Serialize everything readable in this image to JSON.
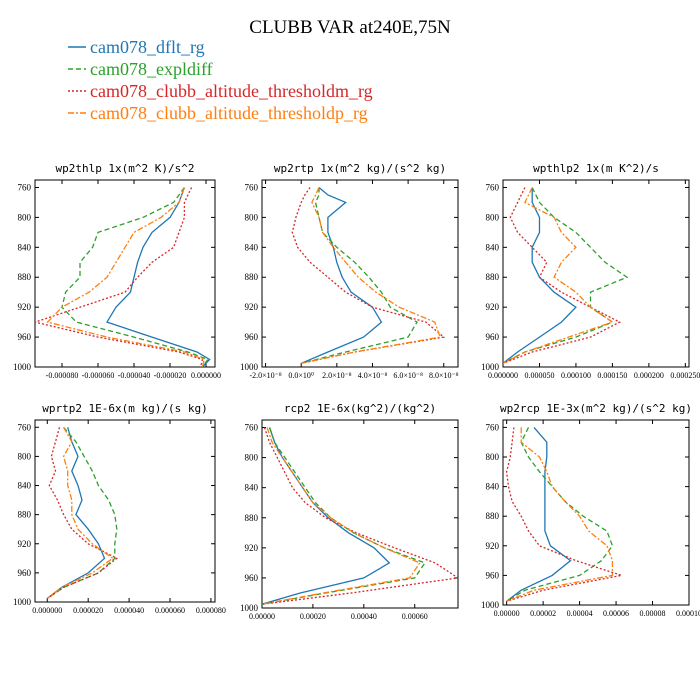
{
  "figure": {
    "title": "CLUBB VAR at240E,75N",
    "legend": [
      {
        "name": "cam078_dflt_rg",
        "color": "#1f77b4",
        "dash": "solid"
      },
      {
        "name": "cam078_expldiff",
        "color": "#2ca02c",
        "dash": "dash"
      },
      {
        "name": "cam078_clubb_altitude_thresholdm_rg",
        "color": "#d62728",
        "dash": "dot"
      },
      {
        "name": "cam078_clubb_altitude_thresholdp_rg",
        "color": "#ff7f0e",
        "dash": "dashdot"
      }
    ]
  },
  "chart_data": [
    {
      "type": "line",
      "title": "wp2thlp  1x(m^2 K)/s^2",
      "xlim": [
        -9.5e-05,
        5e-06
      ],
      "ylim": [
        1000,
        750
      ],
      "x_ticks": [
        -8e-05,
        -6e-05,
        -4e-05,
        -2e-05,
        0.0
      ],
      "x_tick_labels": [
        "-0.000080",
        "-0.000060",
        "-0.000040",
        "-0.000020",
        "0.000000"
      ],
      "y_ticks": [
        760,
        800,
        840,
        880,
        920,
        960,
        1000
      ],
      "y": [
        760,
        780,
        800,
        820,
        840,
        860,
        880,
        900,
        920,
        940,
        960,
        980,
        990,
        1000
      ],
      "series": [
        {
          "name": "cam078_dflt_rg",
          "values": [
            -1.2e-05,
            -1.5e-05,
            -2e-05,
            -3e-05,
            -3.5e-05,
            -3.8e-05,
            -4e-05,
            -4.2e-05,
            -5e-05,
            -5.5e-05,
            -3e-05,
            -5e-06,
            2e-06,
            -2e-06
          ]
        },
        {
          "name": "cam078_expldiff",
          "values": [
            -1.2e-05,
            -1.8e-05,
            -3.5e-05,
            -6e-05,
            -6.3e-05,
            -7e-05,
            -7e-05,
            -7.8e-05,
            -8e-05,
            -7.2e-05,
            -4e-05,
            -1e-05,
            1e-06,
            -2e-06
          ]
        },
        {
          "name": "cam078_clubb_altitude_thresholdm_rg",
          "values": [
            -8e-06,
            -1.2e-05,
            -1.2e-05,
            -1.5e-05,
            -1.8e-05,
            -3e-05,
            -3.8e-05,
            -4.5e-05,
            -7e-05,
            -9.5e-05,
            -6e-05,
            -1.5e-05,
            -2e-06,
            -3e-06
          ]
        },
        {
          "name": "cam078_clubb_altitude_thresholdp_rg",
          "values": [
            -1.2e-05,
            -1.5e-05,
            -2.5e-05,
            -4e-05,
            -4.5e-05,
            -5e-05,
            -5.5e-05,
            -6.5e-05,
            -8e-05,
            -8.8e-05,
            -5.5e-05,
            -1.2e-05,
            -1e-06,
            -2e-06
          ]
        }
      ]
    },
    {
      "type": "line",
      "title": "wp2rtp  1x(m^2 kg)/(s^2 kg)",
      "xlim": [
        -2.2e-08,
        8.8e-08
      ],
      "ylim": [
        1000,
        750
      ],
      "x_ticks": [
        -2e-08,
        0.0,
        2e-08,
        4e-08,
        6e-08,
        8e-08
      ],
      "x_tick_labels": [
        "-2.0×10⁻⁸",
        "0.0×10⁰",
        "2.0×10⁻⁸",
        "4.0×10⁻⁸",
        "6.0×10⁻⁸",
        "8.0×10⁻⁸"
      ],
      "y_ticks": [
        760,
        800,
        840,
        880,
        920,
        960,
        1000
      ],
      "y": [
        760,
        770,
        780,
        800,
        820,
        840,
        860,
        880,
        900,
        920,
        940,
        960,
        980,
        995
      ],
      "series": [
        {
          "name": "cam078_dflt_rg",
          "values": [
            1e-08,
            1.5e-08,
            2.5e-08,
            1.5e-08,
            1.5e-08,
            1.8e-08,
            2e-08,
            2.3e-08,
            2.8e-08,
            4e-08,
            4.5e-08,
            3.5e-08,
            1.5e-08,
            0.0
          ]
        },
        {
          "name": "cam078_expldiff",
          "values": [
            1e-08,
            1e-08,
            8e-09,
            1e-08,
            1.2e-08,
            2e-08,
            3e-08,
            3.8e-08,
            4.5e-08,
            5e-08,
            6.5e-08,
            6e-08,
            2.5e-08,
            0.0
          ]
        },
        {
          "name": "cam078_clubb_altitude_thresholdm_rg",
          "values": [
            5e-09,
            2e-09,
            0.0,
            -3e-09,
            -5e-09,
            -2e-09,
            5e-09,
            1.5e-08,
            2.5e-08,
            4e-08,
            7e-08,
            8e-08,
            3e-08,
            0.0
          ]
        },
        {
          "name": "cam078_clubb_altitude_thresholdp_rg",
          "values": [
            1e-08,
            8e-09,
            6e-09,
            1e-08,
            1.2e-08,
            1.8e-08,
            2.5e-08,
            3.2e-08,
            4.2e-08,
            5.5e-08,
            7.5e-08,
            7.8e-08,
            3e-08,
            0.0
          ]
        }
      ]
    },
    {
      "type": "line",
      "title": "wpthlp2  1x(m K^2)/s",
      "xlim": [
        0.0,
        0.000255
      ],
      "ylim": [
        1000,
        750
      ],
      "x_ticks": [
        0.0,
        5e-05,
        0.0001,
        0.00015,
        0.0002,
        0.00025
      ],
      "x_tick_labels": [
        "0.000000",
        "0.000050",
        "0.000100",
        "0.000150",
        "0.000200",
        "0.000250"
      ],
      "y_ticks": [
        760,
        800,
        840,
        880,
        920,
        960,
        1000
      ],
      "y": [
        760,
        780,
        800,
        820,
        840,
        860,
        880,
        900,
        920,
        940,
        960,
        980,
        995
      ],
      "series": [
        {
          "name": "cam078_dflt_rg",
          "values": [
            4e-05,
            4e-05,
            5e-05,
            5e-05,
            4e-05,
            4e-05,
            5e-05,
            7e-05,
            0.0001,
            8e-05,
            5e-05,
            2e-05,
            0.0
          ],
          "y": [
            760,
            780,
            800,
            820,
            840,
            860,
            880,
            900,
            920,
            940,
            960,
            980,
            995
          ]
        },
        {
          "name": "cam078_expldiff",
          "values": [
            4e-05,
            5e-05,
            7e-05,
            0.0001,
            0.00012,
            0.00014,
            0.00017,
            0.00012,
            0.00012,
            0.00015,
            0.0001,
            3e-05,
            0.0
          ]
        },
        {
          "name": "cam078_clubb_altitude_thresholdm_rg",
          "values": [
            3e-05,
            2e-05,
            1e-05,
            2e-05,
            4e-05,
            6e-05,
            5e-05,
            8e-05,
            0.00012,
            0.00016,
            0.00012,
            4e-05,
            0.0
          ]
        },
        {
          "name": "cam078_clubb_altitude_thresholdp_rg",
          "values": [
            4e-05,
            3e-05,
            7e-05,
            8e-05,
            0.0001,
            8e-05,
            7e-05,
            0.0001,
            0.00012,
            0.00015,
            9e-05,
            3e-05,
            0.0
          ]
        }
      ]
    },
    {
      "type": "line",
      "title": "wprtp2  1E-6x(m kg)/(s kg)",
      "xlim": [
        -6e-06,
        8.2e-05
      ],
      "ylim": [
        1000,
        750
      ],
      "x_ticks": [
        0.0,
        2e-05,
        4e-05,
        6e-05,
        8e-05
      ],
      "x_tick_labels": [
        "0.000000",
        "0.000020",
        "0.000040",
        "0.000060",
        "0.000080"
      ],
      "y_ticks": [
        760,
        800,
        840,
        880,
        920,
        960,
        1000
      ],
      "y": [
        760,
        780,
        800,
        820,
        840,
        860,
        880,
        900,
        920,
        940,
        960,
        980,
        995
      ],
      "series": [
        {
          "name": "cam078_dflt_rg",
          "values": [
            1e-05,
            1.2e-05,
            1.5e-05,
            1.2e-05,
            1.5e-05,
            1.7e-05,
            1.4e-05,
            2e-05,
            2.5e-05,
            2.8e-05,
            2e-05,
            7e-06,
            0.0
          ]
        },
        {
          "name": "cam078_expldiff",
          "values": [
            8e-06,
            1.4e-05,
            1.8e-05,
            2.2e-05,
            2.5e-05,
            3e-05,
            3.3e-05,
            3.4e-05,
            3.3e-05,
            3.3e-05,
            2.5e-05,
            8e-06,
            0.0
          ]
        },
        {
          "name": "cam078_clubb_altitude_thresholdm_rg",
          "values": [
            6e-06,
            4e-06,
            2e-06,
            4e-06,
            1e-06,
            5e-06,
            8e-06,
            1.2e-05,
            2e-05,
            3.4e-05,
            2.5e-05,
            8e-06,
            0.0
          ]
        },
        {
          "name": "cam078_clubb_altitude_thresholdp_rg",
          "values": [
            8e-06,
            1.2e-05,
            8e-06,
            1e-05,
            1e-05,
            1.2e-05,
            1.2e-05,
            1.5e-05,
            2.2e-05,
            3.2e-05,
            2.2e-05,
            7e-06,
            0.0
          ]
        }
      ]
    },
    {
      "type": "line",
      "title": "rcp2  1E-6x(kg^2)/(kg^2)",
      "xlim": [
        0.0,
        0.00077
      ],
      "ylim": [
        1000,
        750
      ],
      "x_ticks": [
        0.0,
        0.0002,
        0.0004,
        0.0006
      ],
      "x_tick_labels": [
        "0.00000",
        "0.00020",
        "0.00040",
        "0.00060"
      ],
      "y_ticks": [
        760,
        800,
        840,
        880,
        920,
        960,
        1000
      ],
      "y": [
        760,
        780,
        800,
        820,
        840,
        860,
        880,
        900,
        920,
        940,
        960,
        980,
        995
      ],
      "series": [
        {
          "name": "cam078_dflt_rg",
          "values": [
            3e-05,
            5e-05,
            8e-05,
            0.00012,
            0.00016,
            0.0002,
            0.00026,
            0.00034,
            0.00044,
            0.0005,
            0.0004,
            0.00015,
            0.0
          ]
        },
        {
          "name": "cam078_expldiff",
          "values": [
            3e-05,
            5e-05,
            9e-05,
            0.00013,
            0.00017,
            0.00021,
            0.00027,
            0.00036,
            0.00048,
            0.00064,
            0.0006,
            0.00025,
            0.0
          ]
        },
        {
          "name": "cam078_clubb_altitude_thresholdm_rg",
          "values": [
            1e-05,
            3e-05,
            6e-05,
            9e-05,
            0.00012,
            0.00017,
            0.00025,
            0.00037,
            0.00052,
            0.00068,
            0.00077,
            0.00035,
            0.0
          ]
        },
        {
          "name": "cam078_clubb_altitude_thresholdp_rg",
          "values": [
            2e-05,
            4e-05,
            8e-05,
            0.00012,
            0.00016,
            0.0002,
            0.00027,
            0.00036,
            0.00048,
            0.00062,
            0.00058,
            0.00024,
            0.0
          ]
        }
      ]
    },
    {
      "type": "line",
      "title": "wp2rcp  1E-3x(m^2 kg)/(s^2 kg)",
      "xlim": [
        -2e-06,
        0.0001
      ],
      "ylim": [
        1000,
        750
      ],
      "x_ticks": [
        0.0,
        2e-05,
        4e-05,
        6e-05,
        8e-05,
        0.0001
      ],
      "x_tick_labels": [
        "0.00000",
        "0.00002",
        "0.00004",
        "0.00006",
        "0.00008",
        "0.00010"
      ],
      "y_ticks": [
        760,
        800,
        840,
        880,
        920,
        960,
        1000
      ],
      "y": [
        760,
        780,
        800,
        820,
        840,
        860,
        880,
        900,
        920,
        940,
        960,
        980,
        995
      ],
      "series": [
        {
          "name": "cam078_dflt_rg",
          "values": [
            1.5e-05,
            2.2e-05,
            2.2e-05,
            2.1e-05,
            2.1e-05,
            2.1e-05,
            2.1e-05,
            2.1e-05,
            2.4e-05,
            3.5e-05,
            2.5e-05,
            8e-06,
            0.0
          ]
        },
        {
          "name": "cam078_expldiff",
          "values": [
            1.2e-05,
            8e-06,
            1.2e-05,
            1.8e-05,
            2.5e-05,
            3.2e-05,
            4.2e-05,
            5.5e-05,
            5.8e-05,
            5.2e-05,
            4e-05,
            1e-05,
            0.0
          ]
        },
        {
          "name": "cam078_clubb_altitude_thresholdm_rg",
          "values": [
            4e-06,
            3e-06,
            2e-06,
            0.0,
            1e-06,
            3e-06,
            8e-06,
            1.2e-05,
            1.8e-05,
            3.8e-05,
            6.3e-05,
            2e-05,
            0.0
          ]
        },
        {
          "name": "cam078_clubb_altitude_thresholdp_rg",
          "values": [
            8e-06,
            8e-06,
            1.8e-05,
            2.2e-05,
            2.5e-05,
            3.2e-05,
            4e-05,
            4.5e-05,
            5.5e-05,
            5.8e-05,
            5.8e-05,
            1.5e-05,
            0.0
          ]
        }
      ]
    }
  ]
}
